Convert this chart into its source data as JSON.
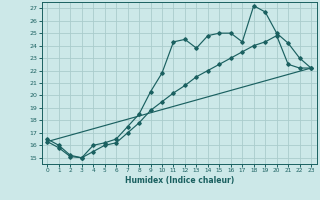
{
  "xlabel": "Humidex (Indice chaleur)",
  "bg_color": "#cce8e8",
  "grid_color": "#aacccc",
  "line_color": "#1a6060",
  "xlim": [
    -0.5,
    23.5
  ],
  "ylim": [
    14.5,
    27.5
  ],
  "xticks": [
    0,
    1,
    2,
    3,
    4,
    5,
    6,
    7,
    8,
    9,
    10,
    11,
    12,
    13,
    14,
    15,
    16,
    17,
    18,
    19,
    20,
    21,
    22,
    23
  ],
  "yticks": [
    15,
    16,
    17,
    18,
    19,
    20,
    21,
    22,
    23,
    24,
    25,
    26,
    27
  ],
  "series1_x": [
    0,
    1,
    2,
    3,
    4,
    5,
    6,
    7,
    8,
    9,
    10,
    11,
    12,
    13,
    14,
    15,
    16,
    17,
    18,
    19,
    20,
    21,
    22,
    23
  ],
  "series1_y": [
    16.5,
    16.0,
    15.2,
    15.0,
    16.0,
    16.2,
    16.5,
    17.5,
    18.5,
    20.3,
    21.8,
    24.3,
    24.5,
    23.8,
    24.8,
    25.0,
    25.0,
    24.3,
    27.2,
    26.7,
    25.0,
    24.2,
    23.0,
    22.2
  ],
  "series2_x": [
    0,
    1,
    2,
    3,
    4,
    5,
    6,
    7,
    8,
    9,
    10,
    11,
    12,
    13,
    14,
    15,
    16,
    17,
    18,
    19,
    20,
    21,
    22,
    23
  ],
  "series2_y": [
    16.3,
    15.8,
    15.1,
    15.0,
    15.5,
    16.0,
    16.2,
    17.0,
    17.8,
    18.8,
    19.5,
    20.2,
    20.8,
    21.5,
    22.0,
    22.5,
    23.0,
    23.5,
    24.0,
    24.3,
    24.8,
    22.5,
    22.2,
    22.2
  ],
  "series3_x": [
    0,
    23
  ],
  "series3_y": [
    16.3,
    22.2
  ]
}
